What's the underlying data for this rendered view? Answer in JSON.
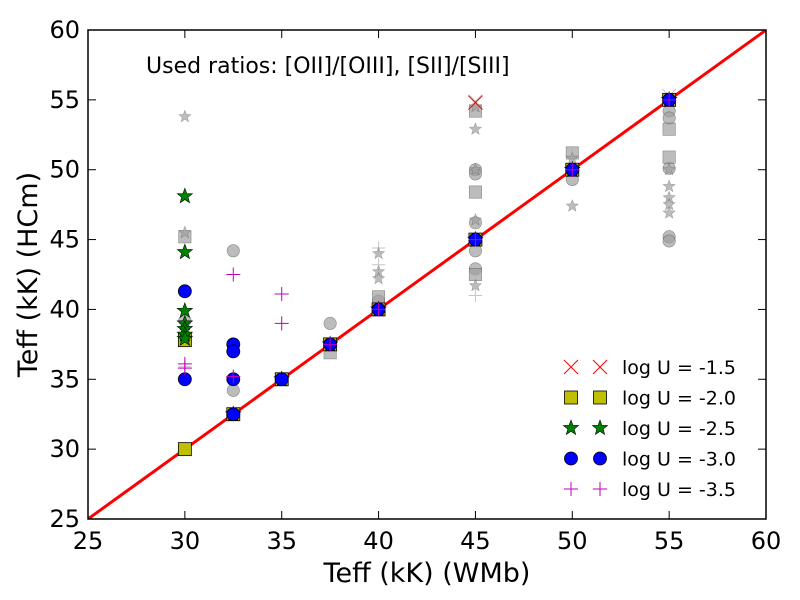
{
  "chart_data": {
    "type": "scatter",
    "xlabel": "Teff (kK) (WMb)",
    "ylabel": "Teff (kK) (HCm)",
    "xlim": [
      25,
      60
    ],
    "ylim": [
      25,
      60
    ],
    "xticks": [
      "25",
      "30",
      "35",
      "40",
      "45",
      "50",
      "55",
      "60"
    ],
    "yticks": [
      "25",
      "30",
      "35",
      "40",
      "45",
      "50",
      "55",
      "60"
    ],
    "annotation": "Used ratios: [OII]/[OIII], [SII]/[SIII]",
    "legend_placement": "lower-right",
    "identity_line": {
      "from": [
        25,
        25
      ],
      "to": [
        60,
        60
      ],
      "color": "#ff0000"
    },
    "grid": false,
    "series": [
      {
        "name": "log U = -1.5",
        "marker": "x",
        "color": "#ff0000",
        "points": [
          [
            45,
            54.8
          ]
        ]
      },
      {
        "name": "log U = -2.0",
        "marker": "square",
        "color": "#bfbf00",
        "points": [
          [
            30,
            30
          ],
          [
            30,
            37.8
          ],
          [
            32.5,
            32.5
          ],
          [
            35,
            35
          ],
          [
            37.5,
            37.5
          ],
          [
            40,
            40
          ],
          [
            45,
            45
          ],
          [
            50,
            50
          ],
          [
            55,
            55
          ]
        ]
      },
      {
        "name": "log U = -2.5",
        "marker": "star",
        "color": "#008000",
        "points": [
          [
            30,
            48.1
          ],
          [
            30,
            44.1
          ],
          [
            30,
            39.9
          ],
          [
            30,
            39
          ],
          [
            30,
            38.6
          ],
          [
            30,
            38.2
          ],
          [
            30,
            37.9
          ],
          [
            32.5,
            32.5
          ],
          [
            35,
            35
          ],
          [
            37.5,
            37.5
          ],
          [
            40,
            40
          ],
          [
            45,
            45
          ],
          [
            50,
            50
          ],
          [
            55,
            55
          ]
        ]
      },
      {
        "name": "log U = -3.0",
        "marker": "circle",
        "color": "#0000ff",
        "points": [
          [
            30,
            41.3
          ],
          [
            30,
            35
          ],
          [
            32.5,
            37.5
          ],
          [
            32.5,
            37
          ],
          [
            32.5,
            35
          ],
          [
            32.5,
            32.5
          ],
          [
            35,
            35
          ],
          [
            37.5,
            37.5
          ],
          [
            40,
            40
          ],
          [
            45,
            45
          ],
          [
            50,
            50
          ],
          [
            55,
            55
          ]
        ]
      },
      {
        "name": "log U = -3.5",
        "marker": "plus",
        "color": "#bf00bf",
        "points": [
          [
            30,
            36.1
          ],
          [
            30,
            35.8
          ],
          [
            32.5,
            42.5
          ],
          [
            32.5,
            35.2
          ],
          [
            35,
            41.1
          ],
          [
            35,
            39
          ],
          [
            37.5,
            37.5
          ],
          [
            40,
            40
          ],
          [
            45,
            45
          ],
          [
            50,
            50
          ],
          [
            55,
            55
          ]
        ]
      }
    ],
    "background_points": {
      "color": "#a0a0a0",
      "circles": [
        [
          30,
          39.2
        ],
        [
          32.5,
          44.2
        ],
        [
          32.5,
          34.2
        ],
        [
          37.5,
          39
        ],
        [
          40,
          40.6
        ],
        [
          45,
          50
        ],
        [
          45,
          49.7
        ],
        [
          45,
          46.2
        ],
        [
          45,
          44.2
        ],
        [
          45,
          42.9
        ],
        [
          50,
          49.3
        ],
        [
          55,
          54.2
        ],
        [
          55,
          53.7
        ],
        [
          55,
          50.1
        ],
        [
          55,
          45.2
        ],
        [
          55,
          44.9
        ]
      ],
      "squares": [
        [
          30,
          45.2
        ],
        [
          37.5,
          36.9
        ],
        [
          40,
          40.9
        ],
        [
          45,
          54.2
        ],
        [
          45,
          48.4
        ],
        [
          45,
          42.5
        ],
        [
          50,
          51.2
        ],
        [
          55,
          52.9
        ],
        [
          55,
          50.9
        ]
      ],
      "stars": [
        [
          30,
          53.8
        ],
        [
          30,
          45.5
        ],
        [
          40,
          44
        ],
        [
          40,
          42.7
        ],
        [
          40,
          42.2
        ],
        [
          45,
          54.5
        ],
        [
          45,
          52.9
        ],
        [
          45,
          50
        ],
        [
          45,
          46.4
        ],
        [
          45,
          41.7
        ],
        [
          50,
          47.4
        ],
        [
          50,
          50.8
        ],
        [
          55,
          48.8
        ],
        [
          55,
          48
        ],
        [
          55,
          47.5
        ],
        [
          55,
          46.9
        ],
        [
          55,
          50
        ]
      ],
      "crosses": [
        [
          45,
          54.9
        ],
        [
          55,
          55.3
        ]
      ],
      "pluses": [
        [
          30,
          35.9
        ],
        [
          40,
          44.4
        ],
        [
          40,
          43.2
        ],
        [
          45,
          41
        ],
        [
          50,
          51
        ]
      ]
    }
  }
}
